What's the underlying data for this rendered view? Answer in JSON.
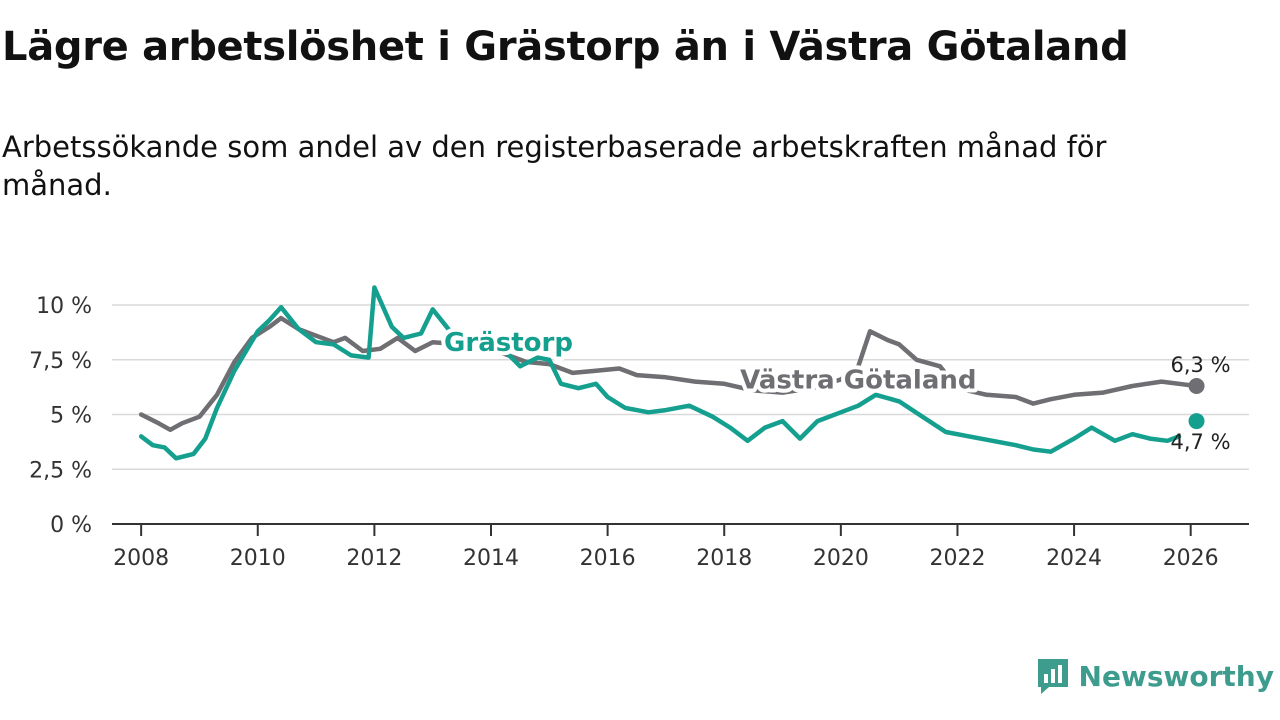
{
  "title": "Lägre arbetslöshet i Grästorp än i Västra Götaland",
  "subtitle": "Arbetssökande som andel av den registerbaserade arbetskraften månad för månad.",
  "brand": {
    "name": "Newsworthy",
    "color": "#3d9c8d"
  },
  "chart_data": {
    "type": "line",
    "title": "Lägre arbetslöshet i Grästorp än i Västra Götaland",
    "xlabel": "",
    "ylabel": "",
    "xlim": [
      2007.5,
      2027
    ],
    "ylim": [
      0,
      10
    ],
    "x_ticks": [
      2008,
      2010,
      2012,
      2014,
      2016,
      2018,
      2020,
      2022,
      2024,
      2026
    ],
    "x_tick_labels": [
      "2008",
      "2010",
      "2012",
      "2014",
      "2016",
      "2018",
      "2020",
      "2022",
      "2024",
      "2026"
    ],
    "y_ticks": [
      0,
      2.5,
      5,
      7.5,
      10
    ],
    "y_tick_labels": [
      "0 %",
      "2,5 %",
      "5 %",
      "7,5 %",
      "10 %"
    ],
    "grid": true,
    "series": [
      {
        "name": "Västra Götaland",
        "color": "#6e6e73",
        "end_label": "6,3 %",
        "end_point": [
          2026.1,
          6.3
        ],
        "label_at": [
          2020.3,
          6.6
        ],
        "points": [
          [
            2008.0,
            5.0
          ],
          [
            2008.3,
            4.6
          ],
          [
            2008.5,
            4.3
          ],
          [
            2008.7,
            4.6
          ],
          [
            2009.0,
            4.9
          ],
          [
            2009.3,
            5.9
          ],
          [
            2009.6,
            7.4
          ],
          [
            2009.9,
            8.5
          ],
          [
            2010.2,
            9.0
          ],
          [
            2010.4,
            9.4
          ],
          [
            2010.7,
            8.9
          ],
          [
            2011.0,
            8.6
          ],
          [
            2011.3,
            8.3
          ],
          [
            2011.5,
            8.5
          ],
          [
            2011.8,
            7.9
          ],
          [
            2012.1,
            8.0
          ],
          [
            2012.4,
            8.5
          ],
          [
            2012.7,
            7.9
          ],
          [
            2013.0,
            8.3
          ],
          [
            2013.5,
            8.2
          ],
          [
            2014.0,
            8.0
          ],
          [
            2014.3,
            7.7
          ],
          [
            2014.6,
            7.4
          ],
          [
            2015.0,
            7.3
          ],
          [
            2015.4,
            6.9
          ],
          [
            2015.8,
            7.0
          ],
          [
            2016.2,
            7.1
          ],
          [
            2016.5,
            6.8
          ],
          [
            2017.0,
            6.7
          ],
          [
            2017.5,
            6.5
          ],
          [
            2018.0,
            6.4
          ],
          [
            2018.5,
            6.1
          ],
          [
            2019.0,
            6.0
          ],
          [
            2019.5,
            6.2
          ],
          [
            2020.0,
            6.6
          ],
          [
            2020.3,
            7.2
          ],
          [
            2020.5,
            8.8
          ],
          [
            2020.8,
            8.4
          ],
          [
            2021.0,
            8.2
          ],
          [
            2021.3,
            7.5
          ],
          [
            2021.7,
            7.2
          ],
          [
            2022.0,
            6.2
          ],
          [
            2022.5,
            5.9
          ],
          [
            2023.0,
            5.8
          ],
          [
            2023.3,
            5.5
          ],
          [
            2023.6,
            5.7
          ],
          [
            2024.0,
            5.9
          ],
          [
            2024.5,
            6.0
          ],
          [
            2025.0,
            6.3
          ],
          [
            2025.5,
            6.5
          ],
          [
            2025.8,
            6.4
          ],
          [
            2026.1,
            6.3
          ]
        ]
      },
      {
        "name": "Grästorp",
        "color": "#159f8f",
        "end_label": "4,7 %",
        "end_point": [
          2026.1,
          4.7
        ],
        "label_at": [
          2014.3,
          8.3
        ],
        "points": [
          [
            2008.0,
            4.0
          ],
          [
            2008.2,
            3.6
          ],
          [
            2008.4,
            3.5
          ],
          [
            2008.6,
            3.0
          ],
          [
            2008.9,
            3.2
          ],
          [
            2009.1,
            3.9
          ],
          [
            2009.3,
            5.3
          ],
          [
            2009.6,
            7.0
          ],
          [
            2009.8,
            7.9
          ],
          [
            2010.0,
            8.8
          ],
          [
            2010.2,
            9.3
          ],
          [
            2010.4,
            9.9
          ],
          [
            2010.7,
            8.9
          ],
          [
            2011.0,
            8.3
          ],
          [
            2011.3,
            8.2
          ],
          [
            2011.6,
            7.7
          ],
          [
            2011.9,
            7.6
          ],
          [
            2012.0,
            10.8
          ],
          [
            2012.3,
            9.0
          ],
          [
            2012.5,
            8.5
          ],
          [
            2012.8,
            8.7
          ],
          [
            2013.0,
            9.8
          ],
          [
            2013.3,
            8.8
          ],
          [
            2013.6,
            8.3
          ],
          [
            2013.9,
            8.5
          ],
          [
            2014.2,
            8.0
          ],
          [
            2014.5,
            7.2
          ],
          [
            2014.8,
            7.6
          ],
          [
            2015.0,
            7.5
          ],
          [
            2015.2,
            6.4
          ],
          [
            2015.5,
            6.2
          ],
          [
            2015.8,
            6.4
          ],
          [
            2016.0,
            5.8
          ],
          [
            2016.3,
            5.3
          ],
          [
            2016.7,
            5.1
          ],
          [
            2017.0,
            5.2
          ],
          [
            2017.4,
            5.4
          ],
          [
            2017.8,
            4.9
          ],
          [
            2018.1,
            4.4
          ],
          [
            2018.4,
            3.8
          ],
          [
            2018.7,
            4.4
          ],
          [
            2019.0,
            4.7
          ],
          [
            2019.3,
            3.9
          ],
          [
            2019.6,
            4.7
          ],
          [
            2020.0,
            5.1
          ],
          [
            2020.3,
            5.4
          ],
          [
            2020.6,
            5.9
          ],
          [
            2021.0,
            5.6
          ],
          [
            2021.4,
            4.9
          ],
          [
            2021.8,
            4.2
          ],
          [
            2022.2,
            4.0
          ],
          [
            2022.6,
            3.8
          ],
          [
            2023.0,
            3.6
          ],
          [
            2023.3,
            3.4
          ],
          [
            2023.6,
            3.3
          ],
          [
            2024.0,
            3.9
          ],
          [
            2024.3,
            4.4
          ],
          [
            2024.7,
            3.8
          ],
          [
            2025.0,
            4.1
          ],
          [
            2025.3,
            3.9
          ],
          [
            2025.6,
            3.8
          ],
          [
            2025.8,
            4.0
          ]
        ]
      }
    ]
  }
}
